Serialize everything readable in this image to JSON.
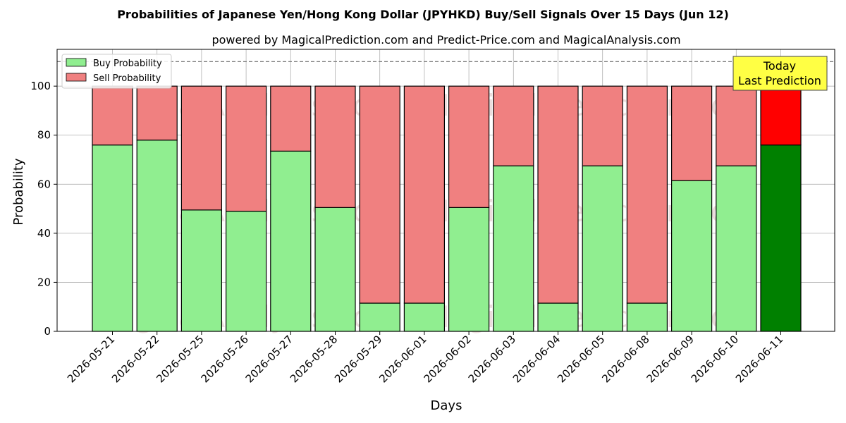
{
  "chart_data": {
    "type": "bar",
    "stacked": true,
    "title": "Probabilities of Japanese Yen/Hong Kong Dollar (JPYHKD) Buy/Sell Signals Over 15 Days (Jun 12)",
    "subtitle": "powered by MagicalPrediction.com and Predict-Price.com and MagicalAnalysis.com",
    "xlabel": "Days",
    "ylabel": "Probability",
    "ylim": [
      0,
      115
    ],
    "yticks": [
      0,
      20,
      40,
      60,
      80,
      100
    ],
    "reference_line": 110,
    "grid": true,
    "legend_position": "top-left",
    "categories": [
      "2026-05-21",
      "2026-05-22",
      "2026-05-25",
      "2026-05-26",
      "2026-05-27",
      "2026-05-28",
      "2026-05-29",
      "2026-06-01",
      "2026-06-02",
      "2026-06-03",
      "2026-06-04",
      "2026-06-05",
      "2026-06-08",
      "2026-06-09",
      "2026-06-10",
      "2026-06-11"
    ],
    "series": [
      {
        "name": "Buy Probability",
        "color": "#90ee90",
        "highlight_color": "#008000",
        "values": [
          76,
          78,
          49.5,
          49,
          73.5,
          50.5,
          11.5,
          11.5,
          50.5,
          67.5,
          11.5,
          67.5,
          11.5,
          61.5,
          67.5,
          76
        ]
      },
      {
        "name": "Sell Probability",
        "color": "#f08080",
        "highlight_color": "#ff0000",
        "values": [
          24,
          22,
          50.5,
          51,
          26.5,
          49.5,
          88.5,
          88.5,
          49.5,
          32.5,
          88.5,
          32.5,
          88.5,
          38.5,
          32.5,
          24
        ]
      }
    ],
    "highlight_index": 15,
    "annotation": {
      "lines": [
        "Today",
        "Last Prediction"
      ],
      "fill": "#ffff44"
    },
    "watermarks": [
      "MagicalAnalysis.com",
      "MagicalPrediction.com"
    ]
  }
}
